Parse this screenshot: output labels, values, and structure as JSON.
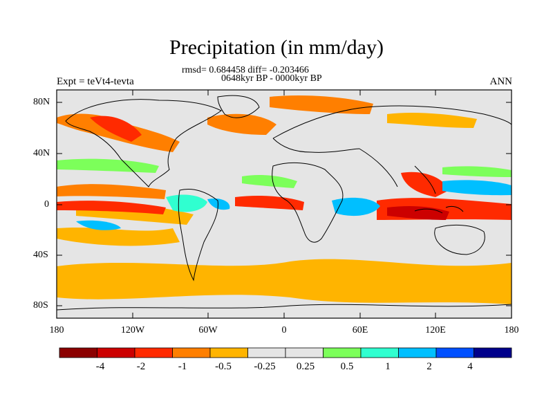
{
  "title": "Precipitation (in mm/day)",
  "subtitle_stats": "rmsd= 0.684458 diff= -0.203466",
  "subtitle_period": "0648kyr BP - 0000kyr BP",
  "experiment": "Expt = teVt4-tevta",
  "season": "ANN",
  "lat_labels": [
    "80N",
    "40N",
    "0",
    "40S",
    "80S"
  ],
  "lon_labels": [
    "180",
    "120W",
    "60W",
    "0",
    "60E",
    "120E",
    "180"
  ],
  "colorbar": {
    "colors": [
      "#8b0000",
      "#cc0000",
      "#ff2a00",
      "#ff7f00",
      "#ffb400",
      "#e5e5e5",
      "#e5e5e5",
      "#7cff5a",
      "#30ffd0",
      "#00bfff",
      "#0050ff",
      "#00008b"
    ],
    "labels": [
      "-4",
      "-2",
      "-1",
      "-0.5",
      "-0.25",
      "0.25",
      "0.5",
      "1",
      "2",
      "4"
    ]
  }
}
